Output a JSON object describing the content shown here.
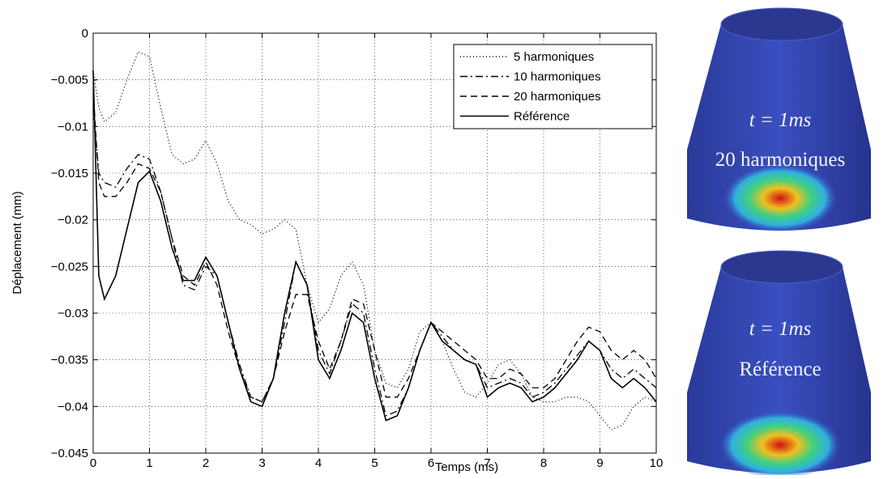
{
  "chart_data": {
    "type": "line",
    "x_label": "Temps (ms)",
    "y_label": "Déplacement (mm)",
    "x": [
      0,
      0.1,
      0.2,
      0.4,
      0.6,
      0.8,
      1.0,
      1.2,
      1.4,
      1.6,
      1.8,
      2.0,
      2.2,
      2.4,
      2.6,
      2.8,
      3.0,
      3.2,
      3.4,
      3.6,
      3.8,
      4.0,
      4.2,
      4.4,
      4.6,
      4.8,
      5.0,
      5.2,
      5.4,
      5.6,
      5.8,
      6.0,
      6.2,
      6.4,
      6.6,
      6.8,
      7.0,
      7.2,
      7.4,
      7.6,
      7.8,
      8.0,
      8.2,
      8.4,
      8.6,
      8.8,
      9.0,
      9.2,
      9.4,
      9.6,
      9.8,
      10.0
    ],
    "series": [
      {
        "name": "5 harmoniques",
        "color": "#000000",
        "style": "dotted",
        "values": [
          -0.004,
          -0.008,
          -0.0095,
          -0.0085,
          -0.005,
          -0.002,
          -0.0025,
          -0.008,
          -0.013,
          -0.014,
          -0.0135,
          -0.0115,
          -0.014,
          -0.018,
          -0.02,
          -0.0205,
          -0.0215,
          -0.021,
          -0.02,
          -0.021,
          -0.027,
          -0.031,
          -0.0295,
          -0.026,
          -0.0245,
          -0.027,
          -0.034,
          -0.0375,
          -0.038,
          -0.036,
          -0.032,
          -0.031,
          -0.033,
          -0.036,
          -0.0385,
          -0.039,
          -0.0375,
          -0.0355,
          -0.035,
          -0.0365,
          -0.039,
          -0.0395,
          -0.0395,
          -0.039,
          -0.039,
          -0.0395,
          -0.041,
          -0.0425,
          -0.042,
          -0.04,
          -0.039,
          -0.0395
        ]
      },
      {
        "name": "10 harmoniques",
        "color": "#000000",
        "style": "dashdot",
        "values": [
          -0.008,
          -0.015,
          -0.016,
          -0.0165,
          -0.0145,
          -0.013,
          -0.0135,
          -0.017,
          -0.022,
          -0.027,
          -0.0275,
          -0.025,
          -0.026,
          -0.031,
          -0.0355,
          -0.039,
          -0.0395,
          -0.037,
          -0.031,
          -0.0245,
          -0.027,
          -0.034,
          -0.0365,
          -0.033,
          -0.029,
          -0.03,
          -0.036,
          -0.041,
          -0.0405,
          -0.038,
          -0.034,
          -0.031,
          -0.0325,
          -0.034,
          -0.035,
          -0.0355,
          -0.038,
          -0.0375,
          -0.037,
          -0.0375,
          -0.039,
          -0.0385,
          -0.0375,
          -0.036,
          -0.0345,
          -0.033,
          -0.034,
          -0.036,
          -0.037,
          -0.036,
          -0.037,
          -0.038
        ]
      },
      {
        "name": "20 harmoniques",
        "color": "#000000",
        "style": "dashed",
        "values": [
          -0.006,
          -0.016,
          -0.0175,
          -0.0175,
          -0.016,
          -0.014,
          -0.0145,
          -0.017,
          -0.022,
          -0.026,
          -0.027,
          -0.0245,
          -0.027,
          -0.032,
          -0.036,
          -0.039,
          -0.0395,
          -0.037,
          -0.032,
          -0.028,
          -0.028,
          -0.033,
          -0.036,
          -0.033,
          -0.0285,
          -0.029,
          -0.034,
          -0.039,
          -0.039,
          -0.037,
          -0.034,
          -0.031,
          -0.032,
          -0.033,
          -0.034,
          -0.035,
          -0.037,
          -0.037,
          -0.036,
          -0.0365,
          -0.038,
          -0.038,
          -0.037,
          -0.035,
          -0.033,
          -0.0315,
          -0.032,
          -0.034,
          -0.035,
          -0.034,
          -0.035,
          -0.037
        ]
      },
      {
        "name": "Référence",
        "color": "#000000",
        "style": "solid",
        "values": [
          -0.004,
          -0.026,
          -0.0285,
          -0.026,
          -0.021,
          -0.016,
          -0.0148,
          -0.018,
          -0.023,
          -0.0265,
          -0.0265,
          -0.024,
          -0.026,
          -0.031,
          -0.036,
          -0.0395,
          -0.04,
          -0.037,
          -0.03,
          -0.0245,
          -0.027,
          -0.035,
          -0.037,
          -0.034,
          -0.03,
          -0.031,
          -0.037,
          -0.0415,
          -0.041,
          -0.038,
          -0.034,
          -0.031,
          -0.033,
          -0.034,
          -0.035,
          -0.0355,
          -0.039,
          -0.038,
          -0.0375,
          -0.038,
          -0.0395,
          -0.039,
          -0.038,
          -0.0365,
          -0.035,
          -0.033,
          -0.034,
          -0.037,
          -0.038,
          -0.037,
          -0.038,
          -0.0395
        ]
      }
    ],
    "xlim": [
      0,
      10
    ],
    "xticks": [
      0,
      1,
      2,
      3,
      4,
      5,
      6,
      7,
      8,
      9,
      10
    ],
    "ylim": [
      -0.045,
      0
    ],
    "yticks": [
      {
        "value": -0.045,
        "label": "−0.045"
      },
      {
        "value": -0.04,
        "label": "−0.04"
      },
      {
        "value": -0.035,
        "label": "−0.035"
      },
      {
        "value": -0.03,
        "label": "−0.03"
      },
      {
        "value": -0.025,
        "label": "−0.025"
      },
      {
        "value": -0.02,
        "label": "−0.02"
      },
      {
        "value": -0.015,
        "label": "−0.015"
      },
      {
        "value": -0.01,
        "label": "−0.01"
      },
      {
        "value": -0.005,
        "label": "−0.005"
      },
      0
    ],
    "grid": true,
    "legend": "upper right",
    "insets": [
      {
        "time_label": "t = 1ms",
        "caption": "20 harmoniques"
      },
      {
        "time_label": "t = 1ms",
        "caption": "Référence"
      }
    ]
  }
}
